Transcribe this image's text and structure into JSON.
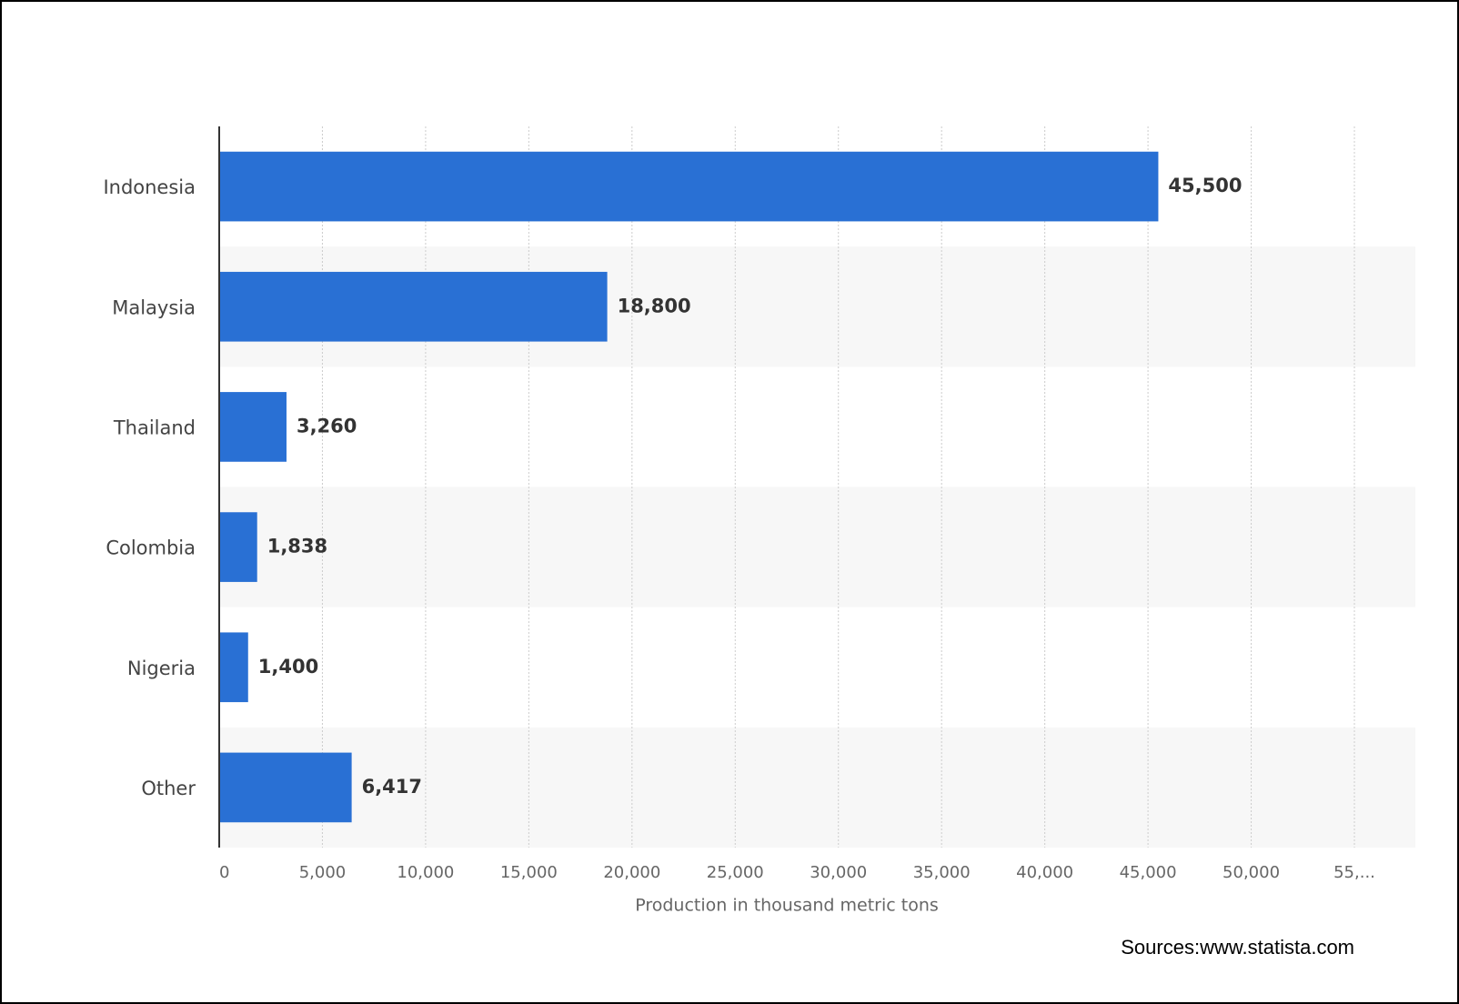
{
  "chart_data": {
    "type": "bar",
    "orientation": "horizontal",
    "categories": [
      "Indonesia",
      "Malaysia",
      "Thailand",
      "Colombia",
      "Nigeria",
      "Other"
    ],
    "values": [
      45500,
      18800,
      3260,
      1838,
      1400,
      6417
    ],
    "value_labels": [
      "45,500",
      "18,800",
      "3,260",
      "1,838",
      "1,400",
      "6,417"
    ],
    "color": "#2970d4",
    "xlabel": "Production in thousand metric tons",
    "xlim": [
      0,
      55000
    ],
    "xticks": [
      0,
      {
        "value": 5000,
        "label": "5,000"
      },
      {
        "value": 10000,
        "label": "10,000"
      },
      {
        "value": 15000,
        "label": "15,000"
      },
      {
        "value": 20000,
        "label": "20,000"
      },
      {
        "value": 25000,
        "label": "25,000"
      },
      {
        "value": 30000,
        "label": "30,000"
      },
      {
        "value": 35000,
        "label": "35,000"
      },
      {
        "value": 40000,
        "label": "40,000"
      },
      {
        "value": 45000,
        "label": "45,000"
      },
      {
        "value": 50000,
        "label": "50,000"
      },
      {
        "value": 55000,
        "label": "55,..."
      }
    ],
    "grid": true,
    "source": "Sources:www.statista.com"
  }
}
